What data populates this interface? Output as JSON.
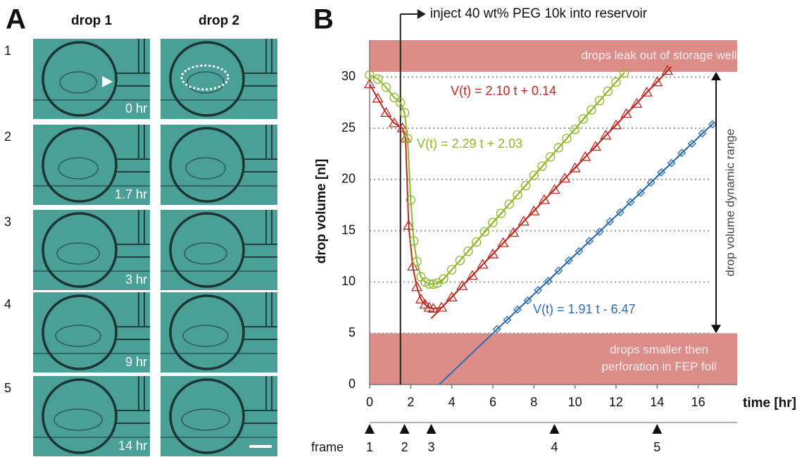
{
  "panel_a": {
    "label": "A",
    "columns": [
      {
        "title": "drop 1",
        "color": "#b01e23"
      },
      {
        "title": "drop 2",
        "color": "#2c6cb0"
      }
    ],
    "rows": [
      {
        "number": "1",
        "time": "0 hr"
      },
      {
        "number": "2",
        "time": "1.7 hr"
      },
      {
        "number": "3",
        "time": "3 hr"
      },
      {
        "number": "4",
        "time": "9 hr"
      },
      {
        "number": "5",
        "time": "14 hr"
      }
    ]
  },
  "chart_data": {
    "type": "line",
    "panel_label": "B",
    "xlabel": "time [hr]",
    "ylabel": "drop volume [nl]",
    "xlim": [
      0,
      17.9
    ],
    "xticks": [
      0,
      2,
      4,
      6,
      8,
      10,
      12,
      14,
      16
    ],
    "ylim": [
      0,
      33.6
    ],
    "yticks": [
      0,
      5,
      10,
      15,
      20,
      25,
      30
    ],
    "grid": true,
    "series": [
      {
        "color": "#c0281f",
        "marker": "triangle",
        "x": [
          0,
          0.4,
          0.8,
          1.2,
          1.6,
          1.75,
          1.9,
          2.1,
          2.3,
          2.5,
          2.7,
          2.9,
          3.1,
          3.5,
          4.0,
          4.5,
          5.0,
          5.5,
          6.0,
          6.5,
          7.0,
          7.5,
          8.0,
          8.5,
          9.0,
          9.5,
          10.0,
          10.5,
          11.0,
          11.5,
          12.0,
          12.5,
          13.0,
          13.5,
          14.0,
          14.5
        ],
        "values": [
          29.3,
          27.9,
          26.5,
          25.5,
          25.0,
          24.0,
          15.5,
          11.5,
          9.5,
          8.3,
          7.8,
          7.5,
          7.4,
          7.5,
          8.5,
          9.6,
          10.6,
          11.7,
          12.7,
          13.8,
          14.8,
          15.9,
          16.9,
          18.0,
          19.0,
          20.1,
          21.1,
          22.2,
          23.2,
          24.3,
          25.3,
          26.4,
          27.4,
          28.5,
          29.5,
          30.6
        ]
      },
      {
        "color": "#8db826",
        "marker": "circle",
        "x": [
          0,
          0.4,
          0.8,
          1.2,
          1.5,
          1.7,
          1.85,
          2.0,
          2.15,
          2.3,
          2.5,
          2.7,
          2.9,
          3.1,
          3.3,
          3.6,
          4.0,
          4.4,
          4.8,
          5.2,
          5.6,
          6.0,
          6.4,
          6.8,
          7.2,
          7.6,
          8.0,
          8.4,
          8.8,
          9.2,
          9.6,
          10.0,
          10.4,
          10.8,
          11.2,
          11.6,
          12.0,
          12.4
        ],
        "values": [
          30.2,
          29.8,
          29.0,
          28.0,
          27.5,
          26.5,
          24.0,
          18.0,
          14.0,
          12.0,
          10.5,
          10.0,
          9.8,
          9.8,
          9.9,
          10.3,
          11.2,
          12.1,
          13.0,
          13.9,
          14.9,
          15.8,
          16.7,
          17.6,
          18.5,
          19.4,
          20.4,
          21.3,
          22.2,
          23.1,
          24.0,
          24.9,
          25.9,
          26.8,
          27.7,
          28.6,
          29.5,
          30.4
        ]
      },
      {
        "color": "#2a6db5",
        "marker": "diamond",
        "x": [
          6.2,
          6.7,
          7.2,
          7.7,
          8.2,
          8.7,
          9.2,
          9.7,
          10.2,
          10.7,
          11.2,
          11.7,
          12.2,
          12.7,
          13.2,
          13.7,
          14.2,
          14.7,
          15.2,
          15.7,
          16.2,
          16.7
        ],
        "values": [
          5.4,
          6.3,
          7.3,
          8.2,
          9.2,
          10.1,
          11.1,
          12.1,
          13.0,
          14.0,
          14.9,
          15.9,
          16.8,
          17.8,
          18.7,
          19.7,
          20.7,
          21.6,
          22.6,
          23.5,
          24.5,
          25.4
        ]
      }
    ],
    "fits": [
      {
        "label": "V(t) = 2.10 t + 0.14",
        "slope": 2.1,
        "intercept": 0.14,
        "xlim": [
          3.0,
          14.7
        ],
        "color": "#c0281f"
      },
      {
        "label": "V(t) = 2.29 t + 2.03",
        "slope": 2.29,
        "intercept": 2.03,
        "xlim": [
          3.4,
          12.4
        ],
        "color": "#8db826"
      },
      {
        "label": "V(t) = 1.91 t - 6.47",
        "slope": 1.91,
        "intercept": -6.47,
        "xlim": [
          3.39,
          16.8
        ],
        "color": "#2a6db5"
      }
    ],
    "bands": [
      {
        "range": [
          30.5,
          33.6
        ],
        "lines": [
          "drops leak out of storage well"
        ],
        "color": "#dc8d87"
      },
      {
        "range": [
          0,
          5
        ],
        "lines": [
          "drops smaller then",
          "perforation in FEP foil"
        ],
        "color": "#dc8d87"
      }
    ],
    "dynamic_range": {
      "label": "drop volume dynamic range",
      "range": [
        5,
        30.5
      ]
    },
    "injection": {
      "label": "inject 40 wt% PEG 10k into reservoir",
      "time": 1.5
    },
    "frames": {
      "label": "frame",
      "times": [
        0,
        1.7,
        3,
        9,
        14
      ],
      "labels": [
        "1",
        "2",
        "3",
        "4",
        "5"
      ]
    }
  }
}
